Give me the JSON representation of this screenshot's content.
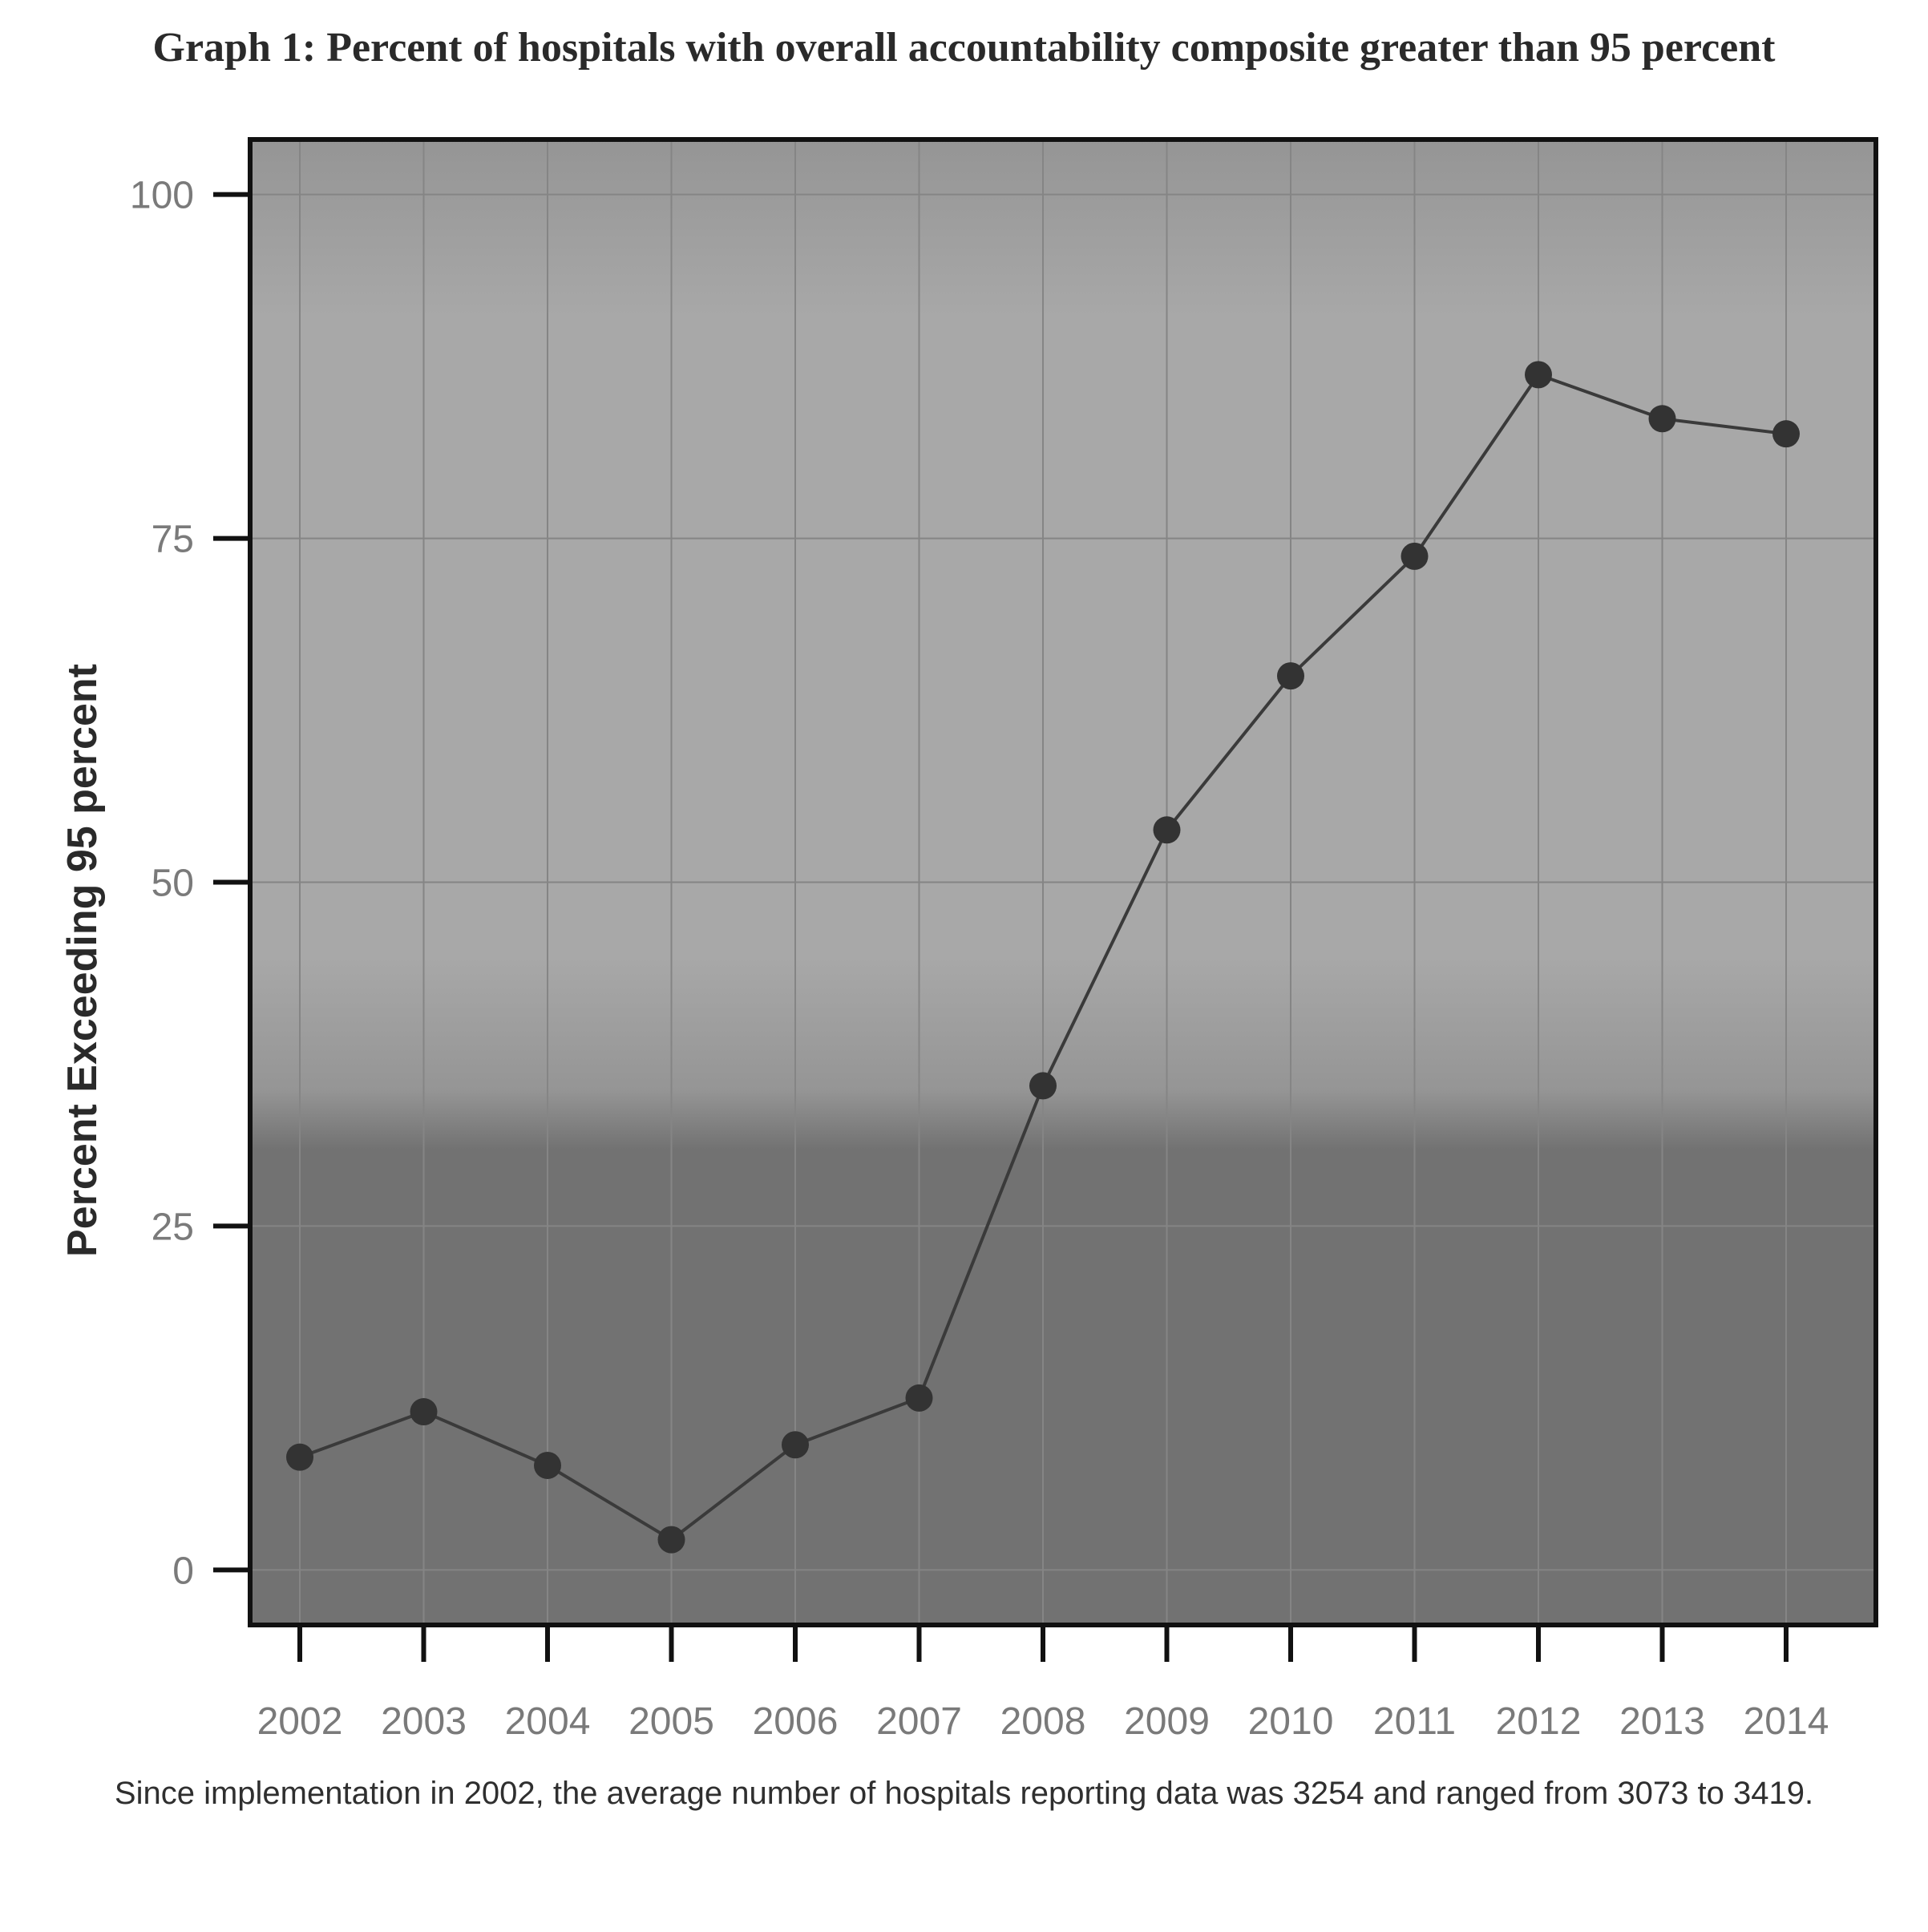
{
  "chart_data": {
    "type": "line",
    "title": "Graph 1: Percent of hospitals with overall accountability composite greater than 95 percent",
    "xlabel": "",
    "ylabel": "Percent Exceeding 95 percent",
    "x": [
      "2002",
      "2003",
      "2004",
      "2005",
      "2006",
      "2007",
      "2008",
      "2009",
      "2010",
      "2011",
      "2012",
      "2013",
      "2014"
    ],
    "series": [
      {
        "values": [
          8.2,
          11.5,
          7.6,
          2.2,
          9.1,
          12.5,
          35.2,
          53.8,
          65.0,
          73.7,
          86.9,
          83.7,
          82.6
        ]
      }
    ],
    "ylim": [
      -4,
      104
    ],
    "yticks": [
      0,
      25,
      50,
      75,
      100
    ],
    "grid": true,
    "legend": "none",
    "note": "Since implementation in 2002, the average number of hospitals reporting data was 3254 and ranged from 3073 to 3419.",
    "colors": {
      "line": "#3a3a3a",
      "marker": "#333333",
      "panel_top": "#959595",
      "panel_mid": "#a8a8a8",
      "panel_bottom": "#727272",
      "grid": "#858585",
      "frame": "#111111"
    }
  }
}
